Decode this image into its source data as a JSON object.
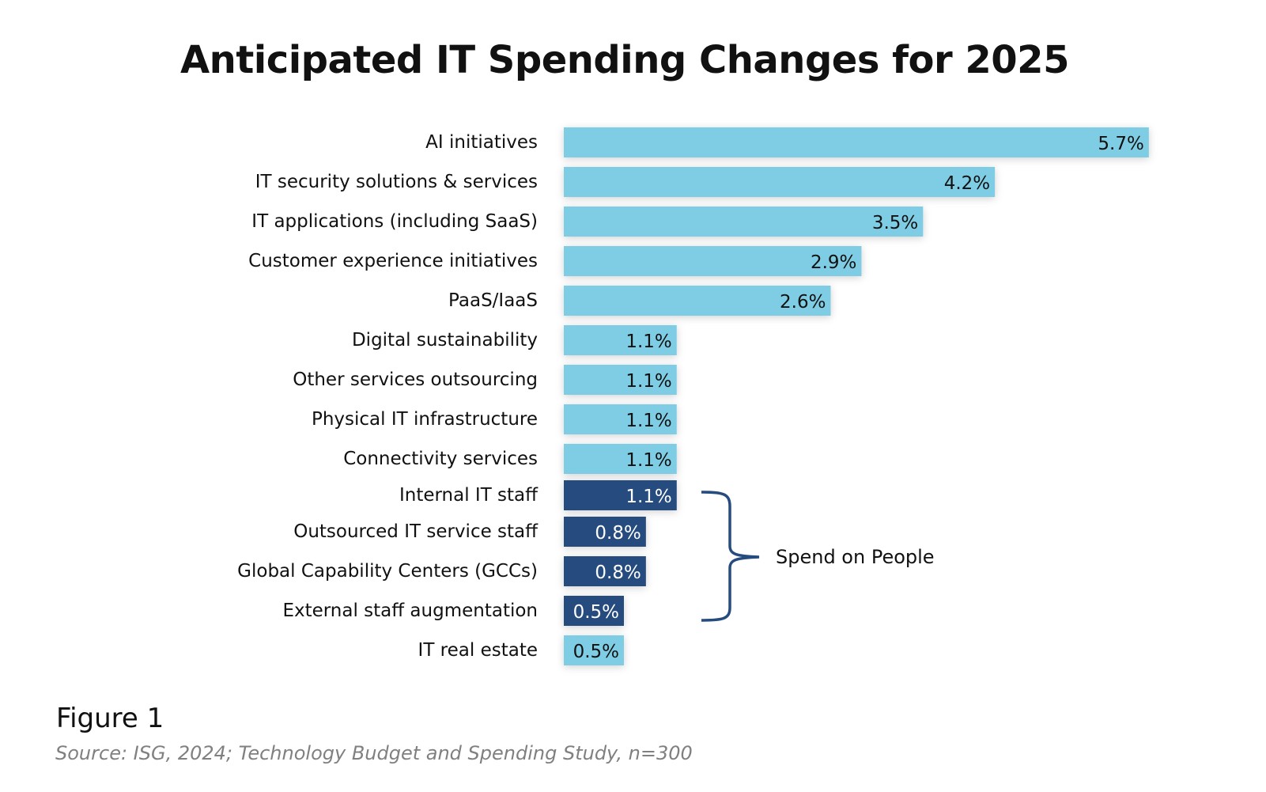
{
  "chart_data": {
    "type": "bar",
    "orientation": "horizontal",
    "title": "Anticipated IT Spending Changes for 2025",
    "categories": [
      "AI initiatives",
      "IT security solutions & services",
      "IT applications (including SaaS)",
      "Customer experience initiatives",
      "PaaS/IaaS",
      "Digital sustainability",
      "Other services outsourcing",
      "Physical IT infrastructure",
      "Connectivity services",
      "Internal IT staff",
      "Outsourced IT service staff",
      "Global Capability Centers (GCCs)",
      "External staff augmentation",
      "IT real estate"
    ],
    "values": [
      5.7,
      4.2,
      3.5,
      2.9,
      2.6,
      1.1,
      1.1,
      1.1,
      1.1,
      1.1,
      0.8,
      0.8,
      0.5,
      0.5
    ],
    "data_labels": [
      "5.7%",
      "4.2%",
      "3.5%",
      "2.9%",
      "2.6%",
      "1.1%",
      "1.1%",
      "1.1%",
      "1.1%",
      "1.1%",
      "0.8%",
      "0.8%",
      "0.5%",
      "0.5%"
    ],
    "highlighted": [
      false,
      false,
      false,
      false,
      false,
      false,
      false,
      false,
      false,
      true,
      true,
      true,
      true,
      false
    ],
    "colors": {
      "default": "#7fcde4",
      "highlight": "#264b7e",
      "bracket": "#264b7e"
    },
    "annotation": "Spend on People",
    "xlabel": "",
    "ylabel": "",
    "grid": false
  },
  "footer": {
    "figure_label": "Figure 1",
    "source": "Source: ISG, 2024; Technology Budget and Spending Study, n=300"
  }
}
